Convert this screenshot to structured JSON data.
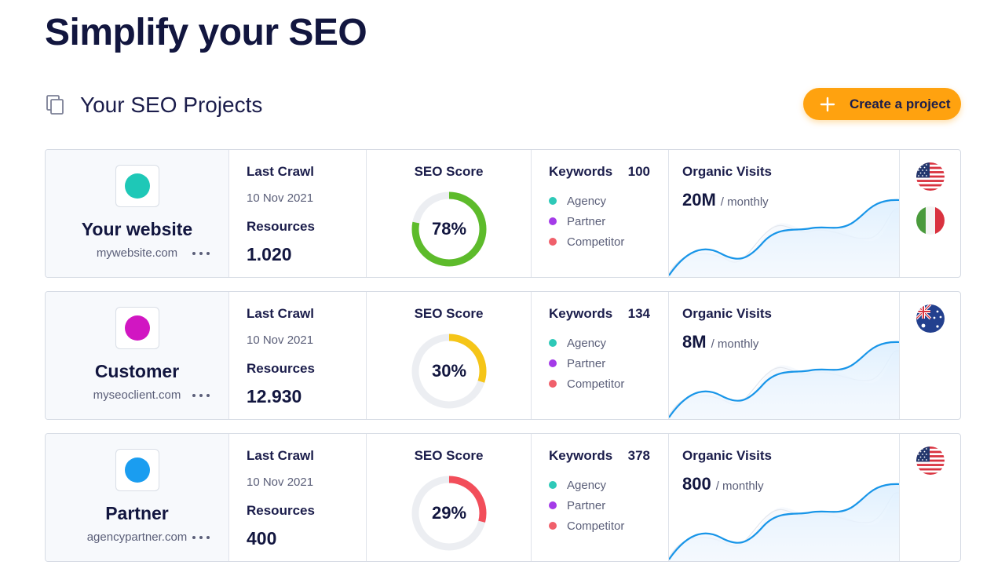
{
  "page": {
    "title": "Simplify your SEO"
  },
  "section": {
    "title": "Your SEO Projects",
    "icon": "copy-icon"
  },
  "create_button": {
    "label": "Create a project",
    "icon": "plus-icon"
  },
  "columns": {
    "last_crawl": "Last Crawl",
    "resources": "Resources",
    "seo_score": "SEO Score",
    "keywords": "Keywords",
    "organic_visits": "Organic Visits",
    "visits_unit": "/ monthly"
  },
  "keyword_legend": [
    {
      "label": "Agency",
      "color": "#2ec9b8"
    },
    {
      "label": "Partner",
      "color": "#a43be8"
    },
    {
      "label": "Competitor",
      "color": "#f0606b"
    }
  ],
  "projects": [
    {
      "name": "Your website",
      "url": "mywebsite.com",
      "logo_color": "#1ec8b7",
      "last_crawl": "10 Nov 2021",
      "resources": "1.020",
      "seo_score_label": "78%",
      "seo_score": 0.78,
      "score_color": "#5dbb2b",
      "keywords": "100",
      "visits": "20M",
      "flags": [
        "us-flag-icon",
        "italy-flag-icon"
      ]
    },
    {
      "name": "Customer",
      "url": "myseoclient.com",
      "logo_color": "#d116c2",
      "last_crawl": "10 Nov 2021",
      "resources": "12.930",
      "seo_score_label": "30%",
      "seo_score": 0.3,
      "score_color": "#f5c518",
      "keywords": "134",
      "visits": "8M",
      "flags": [
        "australia-flag-icon"
      ]
    },
    {
      "name": "Partner",
      "url": "agencypartner.com",
      "logo_color": "#1a9df0",
      "last_crawl": "10 Nov 2021",
      "resources": "400",
      "seo_score_label": "29%",
      "seo_score": 0.29,
      "score_color": "#f24e5a",
      "keywords": "378",
      "visits": "800",
      "flags": [
        "us-flag-icon"
      ]
    }
  ]
}
